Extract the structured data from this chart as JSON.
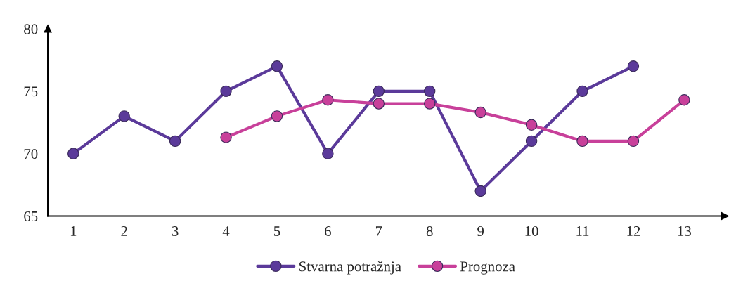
{
  "chart_data": {
    "type": "line",
    "xlim": [
      0.5,
      13.8
    ],
    "xticks": [
      1,
      2,
      3,
      4,
      5,
      6,
      7,
      8,
      9,
      10,
      11,
      12,
      13
    ],
    "ylim": [
      65,
      80
    ],
    "yticks": [
      65,
      70,
      75,
      80
    ],
    "marker": "circle",
    "line_style": "solid",
    "grid": false,
    "legend": "bottom",
    "series": [
      {
        "name": "Stvarna potražnja",
        "color": "#5b3a9a",
        "x": [
          1,
          2,
          3,
          4,
          5,
          6,
          7,
          8,
          9,
          10,
          11,
          12
        ],
        "values": [
          70,
          73,
          71,
          75,
          77,
          70,
          75,
          75,
          67,
          71,
          75,
          77
        ]
      },
      {
        "name": "Prognoza",
        "color": "#c8409a",
        "x": [
          4,
          5,
          6,
          7,
          8,
          9,
          10,
          11,
          12,
          13
        ],
        "values": [
          71.3,
          73,
          74.3,
          74,
          74,
          73.3,
          72.3,
          71,
          71,
          74.3
        ]
      }
    ]
  }
}
